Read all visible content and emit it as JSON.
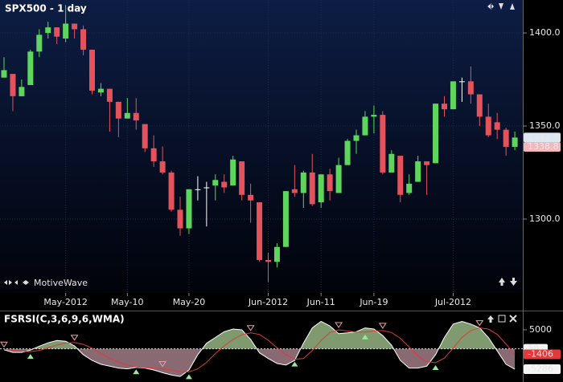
{
  "chart_data": [
    {
      "type": "candlestick",
      "title": "SPX500 - 1 day",
      "watermark": "MotiveWave",
      "categories": [
        null,
        null,
        null,
        null,
        null,
        null,
        null,
        "May-2012",
        null,
        null,
        null,
        null,
        null,
        null,
        "May-10",
        null,
        null,
        null,
        null,
        null,
        null,
        "May-20",
        null,
        null,
        null,
        null,
        null,
        null,
        null,
        null,
        "Jun-2012",
        null,
        null,
        null,
        null,
        null,
        "Jun-11",
        null,
        null,
        null,
        null,
        null,
        "Jun-19",
        null,
        null,
        null,
        null,
        null,
        null,
        null,
        null,
        "Jul-2012",
        null,
        null,
        null,
        null,
        null,
        null,
        null
      ],
      "open": [
        1376,
        1378,
        1366,
        1372,
        1390,
        1400,
        1403,
        1397,
        1405,
        1402,
        1391,
        1368,
        1370,
        1363,
        1354,
        1357,
        1351,
        1338,
        1331,
        1325,
        1305,
        1295,
        1316,
        1317,
        1318,
        1320,
        1318,
        1331,
        1313,
        1309,
        1278,
        1277,
        1285,
        1316,
        1314,
        1325,
        1309,
        1324,
        1314,
        1329,
        1342,
        1345,
        1355,
        1356,
        1325,
        1334,
        1314,
        1320,
        1331,
        1330,
        1362,
        1359,
        1374,
        1374,
        1367,
        1355,
        1352,
        1348,
        1338.8
      ],
      "high": [
        1387,
        1378,
        1375,
        1391,
        1402,
        1406,
        1403,
        1415,
        1405,
        1404,
        1391,
        1373,
        1370,
        1363,
        1365,
        1365,
        1351,
        1345,
        1339,
        1326,
        1312,
        1316,
        1323,
        1320,
        1324,
        1324,
        1334,
        1331,
        1319,
        1309,
        1282,
        1287,
        1315,
        1329,
        1326,
        1335,
        1324,
        1327,
        1333,
        1343,
        1348,
        1358,
        1361,
        1358,
        1337,
        1334,
        1324,
        1334,
        1331,
        1362,
        1366,
        1374,
        1376,
        1382,
        1367,
        1362,
        1357,
        1349,
        1347
      ],
      "low": [
        1376,
        1358,
        1366,
        1372,
        1387,
        1397,
        1394,
        1395,
        1397,
        1388,
        1367,
        1366,
        1347,
        1344,
        1354,
        1348,
        1336,
        1328,
        1324,
        1304,
        1291,
        1292,
        1310,
        1296,
        1310,
        1314,
        1318,
        1310,
        1298,
        1277,
        1266,
        1274,
        1285,
        1312,
        1306,
        1307,
        1306,
        1310,
        1314,
        1329,
        1335,
        1345,
        1346,
        1324,
        1325,
        1309,
        1313,
        1320,
        1313,
        1330,
        1355,
        1359,
        1363,
        1362,
        1350,
        1344,
        1343,
        1334,
        1337
      ],
      "close": [
        1380,
        1366,
        1371,
        1390,
        1399,
        1403,
        1398,
        1405,
        1402,
        1391,
        1369,
        1370,
        1363,
        1354,
        1357,
        1353,
        1338,
        1331,
        1325,
        1305,
        1295,
        1316,
        1316,
        1317,
        1321,
        1317,
        1332,
        1313,
        1310,
        1278,
        1277,
        1285,
        1315,
        1314,
        1325,
        1308,
        1324,
        1315,
        1329,
        1342,
        1345,
        1355,
        1356,
        1325,
        1335,
        1313,
        1319,
        1331,
        1329,
        1362,
        1359,
        1374,
        1374,
        1367,
        1355,
        1345,
        1348,
        1338.8,
        1343.8
      ],
      "up_color": "#5ed65e",
      "down_color": "#e4525c",
      "doji_color": "#ffffff",
      "ylim": [
        1260.3,
        1417.7
      ],
      "yticks": [
        {
          "value": 1300,
          "label": "1300.0"
        },
        {
          "value": 1350,
          "label": "1350.0"
        },
        {
          "value": 1400,
          "label": "1400.0"
        }
      ],
      "grid": true
    },
    {
      "type": "oscillator",
      "title": "FSRSI(C,3,6,9,6,WMA)",
      "series": [
        {
          "color": "#ffffff",
          "values": [
            -200,
            -900,
            -900,
            -300,
            700,
            1600,
            2200,
            2000,
            800,
            -1500,
            -3000,
            -4000,
            -4500,
            -5000,
            -5200,
            -4800,
            -5000,
            -5500,
            -6200,
            -6800,
            -7200,
            -5500,
            -1500,
            1500,
            3000,
            4500,
            5200,
            5000,
            2500,
            -1000,
            -2500,
            -3800,
            -4200,
            -3000,
            1500,
            5500,
            7200,
            6000,
            4000,
            4200,
            4500,
            5500,
            5200,
            3500,
            1000,
            -3000,
            -5000,
            -5000,
            -4500,
            -1500,
            3000,
            6500,
            7200,
            6500,
            5500,
            3000,
            -500,
            -4000,
            -5286
          ]
        },
        {
          "color": "#e03a3a",
          "values": [
            -100,
            -300,
            -600,
            -700,
            -400,
            300,
            1000,
            1500,
            1700,
            1200,
            200,
            -1200,
            -2500,
            -3500,
            -4200,
            -4700,
            -4900,
            -5000,
            -5200,
            -5500,
            -5900,
            -6000,
            -5200,
            -3500,
            -1200,
            800,
            2500,
            3700,
            4200,
            3800,
            2300,
            300,
            -1500,
            -2700,
            -2500,
            -400,
            2200,
            4300,
            5000,
            4700,
            4400,
            4400,
            4700,
            4800,
            4300,
            2800,
            500,
            -1800,
            -3300,
            -3600,
            -2400,
            200,
            3000,
            4800,
            5500,
            5200,
            3800,
            1300,
            -1406
          ]
        }
      ],
      "above_color": "#7f9a6e",
      "below_color": "#8a6a72",
      "buy_signals": [
        3,
        15,
        21,
        33,
        41,
        49
      ],
      "sell_signals": [
        0,
        8,
        18,
        28,
        38,
        43,
        54
      ],
      "buy_color": "#9be89b",
      "sell_color": "#f0a0a8",
      "midline": 50,
      "ylim": [
        -7800,
        7300
      ],
      "yticks": [
        5000
      ]
    }
  ]
}
